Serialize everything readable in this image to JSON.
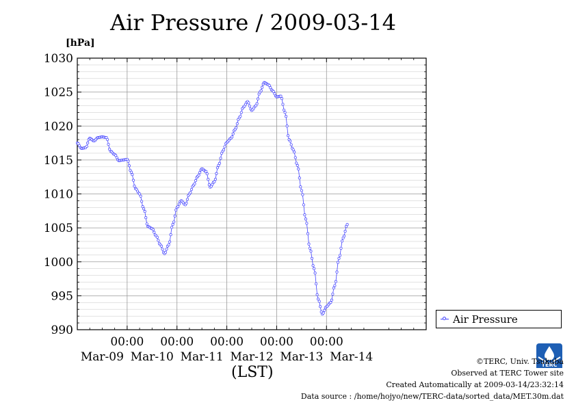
{
  "title": "Air Pressure / 2009-03-14",
  "unit": "[hPa]",
  "legend_label": "Air Pressure",
  "x_unit_label": "(LST)",
  "series_color": "#4040ff",
  "credits": {
    "copyright": "©TERC, Univ. Tsukuba",
    "observed": "Observed at TERC Tower site",
    "created": "Created Automatically at 2009-03-14/23:32:14",
    "source": "Data source : /home/hojyo/new/TERC-data/sorted_data/MET.30m.dat"
  },
  "logo_text": "TERC",
  "chart_data": {
    "type": "line",
    "title": "Air Pressure / 2009-03-14",
    "ylabel": "[hPa]",
    "xlabel": "(LST)",
    "ylim": [
      990,
      1030
    ],
    "yticks": [
      990,
      995,
      1000,
      1005,
      1010,
      1015,
      1020,
      1025,
      1030
    ],
    "xlim_hours": [
      -24,
      144
    ],
    "grid": true,
    "legend": "right",
    "x_tick_time_label": "00:00",
    "x_day_labels": [
      "Mar-09",
      "Mar-10",
      "Mar-11",
      "Mar-12",
      "Mar-13",
      "Mar-14"
    ],
    "series": [
      {
        "name": "Air Pressure",
        "sampling": "30-minute",
        "knots": [
          [
            -24,
            1017.5
          ],
          [
            -22,
            1016.7
          ],
          [
            -20,
            1016.8
          ],
          [
            -18,
            1018.2
          ],
          [
            -16,
            1017.8
          ],
          [
            -14,
            1018.3
          ],
          [
            -12,
            1018.4
          ],
          [
            -10,
            1018.3
          ],
          [
            -8,
            1016.3
          ],
          [
            -6,
            1015.8
          ],
          [
            -4,
            1014.9
          ],
          [
            -2,
            1015.0
          ],
          [
            0,
            1015.1
          ],
          [
            2,
            1013.2
          ],
          [
            4,
            1010.8
          ],
          [
            6,
            1010.0
          ],
          [
            8,
            1007.8
          ],
          [
            10,
            1005.2
          ],
          [
            12,
            1004.9
          ],
          [
            14,
            1003.8
          ],
          [
            16,
            1002.5
          ],
          [
            18,
            1001.2
          ],
          [
            20,
            1002.5
          ],
          [
            22,
            1005.5
          ],
          [
            24,
            1008.0
          ],
          [
            26,
            1009.0
          ],
          [
            28,
            1008.4
          ],
          [
            30,
            1010.0
          ],
          [
            32,
            1011.3
          ],
          [
            34,
            1012.6
          ],
          [
            36,
            1013.7
          ],
          [
            38,
            1013.3
          ],
          [
            40,
            1011.0
          ],
          [
            42,
            1011.8
          ],
          [
            44,
            1014.2
          ],
          [
            46,
            1016.3
          ],
          [
            48,
            1017.6
          ],
          [
            50,
            1018.2
          ],
          [
            52,
            1019.5
          ],
          [
            54,
            1021.2
          ],
          [
            56,
            1022.8
          ],
          [
            58,
            1023.6
          ],
          [
            60,
            1022.3
          ],
          [
            62,
            1023.0
          ],
          [
            64,
            1025.0
          ],
          [
            66,
            1026.4
          ],
          [
            68,
            1026.1
          ],
          [
            70,
            1025.2
          ],
          [
            72,
            1024.3
          ],
          [
            74,
            1024.4
          ],
          [
            76,
            1022.0
          ],
          [
            78,
            1018.0
          ],
          [
            80,
            1016.5
          ],
          [
            82,
            1014.2
          ],
          [
            84,
            1010.5
          ],
          [
            86,
            1006.3
          ],
          [
            88,
            1002.0
          ],
          [
            90,
            999.0
          ],
          [
            92,
            994.5
          ],
          [
            94,
            992.3
          ],
          [
            96,
            993.4
          ],
          [
            98,
            994.0
          ],
          [
            100,
            996.5
          ],
          [
            102,
            1000.5
          ],
          [
            104,
            1003.5
          ],
          [
            106,
            1005.5
          ]
        ]
      }
    ]
  }
}
